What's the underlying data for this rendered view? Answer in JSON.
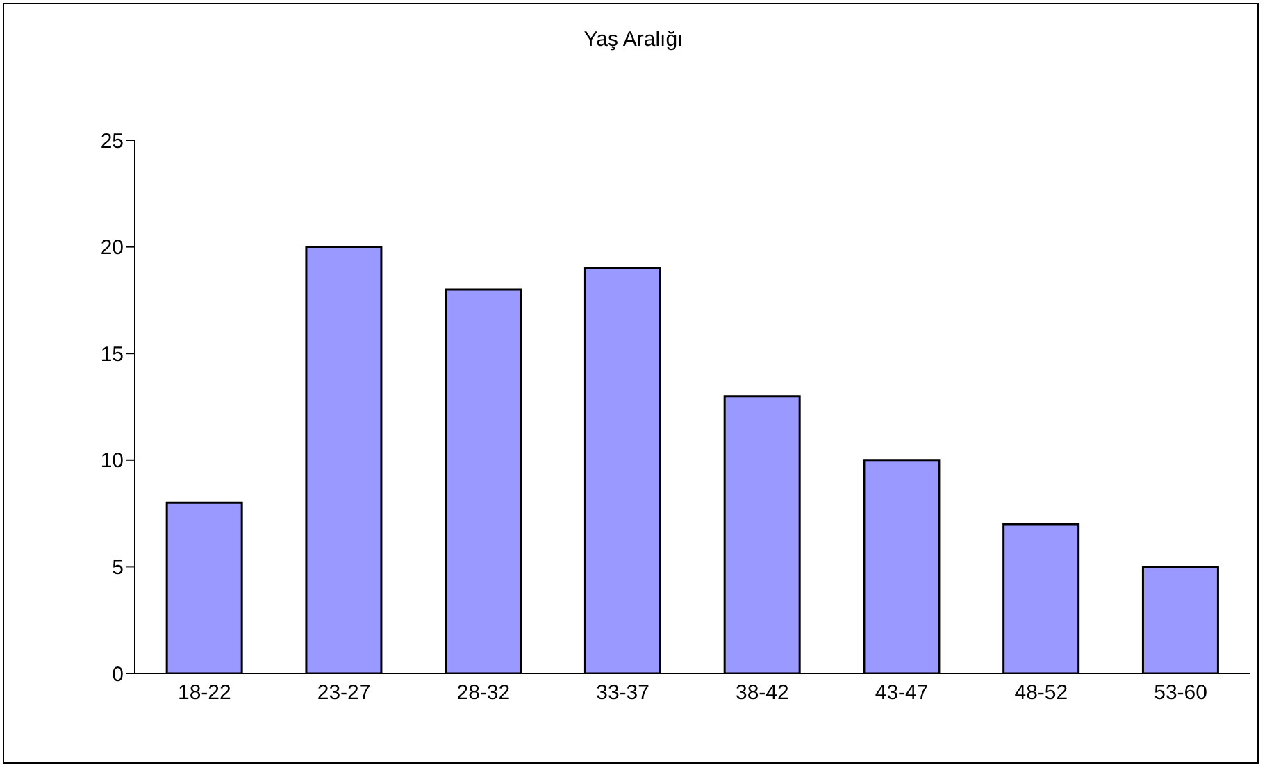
{
  "chart_data": {
    "type": "bar",
    "title": "Yaş Aralığı",
    "categories": [
      "18-22",
      "23-27",
      "28-32",
      "33-37",
      "38-42",
      "43-47",
      "48-52",
      "53-60"
    ],
    "values": [
      8,
      20,
      18,
      19,
      13,
      10,
      7,
      5
    ],
    "color": "#9999ff",
    "ylim": [
      0,
      25
    ],
    "yticks": [
      0,
      5,
      10,
      15,
      20,
      25
    ],
    "grid": false,
    "legend": false
  }
}
